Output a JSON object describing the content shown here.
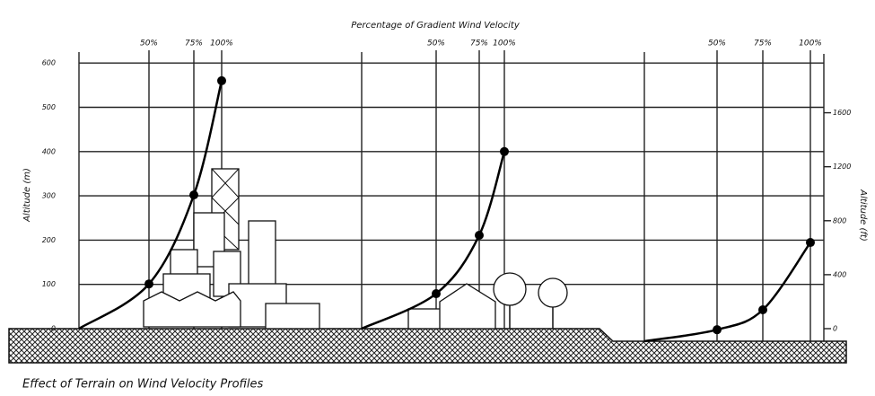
{
  "title": "Effect of Terrain on Wind Velocity Profiles",
  "top_label": "Percentage of Gradient Wind Velocity",
  "left_axis": {
    "label": "Altitude (m)",
    "ticks": [
      0,
      100,
      200,
      300,
      400,
      500,
      600
    ]
  },
  "right_axis": {
    "label": "Altitude (ft)",
    "ticks": [
      0,
      400,
      800,
      1200,
      1600
    ]
  },
  "panels": [
    {
      "percent_labels": [
        "50%",
        "75%",
        "100%"
      ],
      "altitudes": [
        101,
        302,
        560
      ]
    },
    {
      "percent_labels": [
        "50%",
        "75%",
        "100%"
      ],
      "altitudes": [
        79,
        211,
        400
      ]
    },
    {
      "percent_labels": [
        "50%",
        "75%",
        "100%"
      ],
      "altitudes": [
        26,
        71,
        223
      ]
    }
  ]
}
